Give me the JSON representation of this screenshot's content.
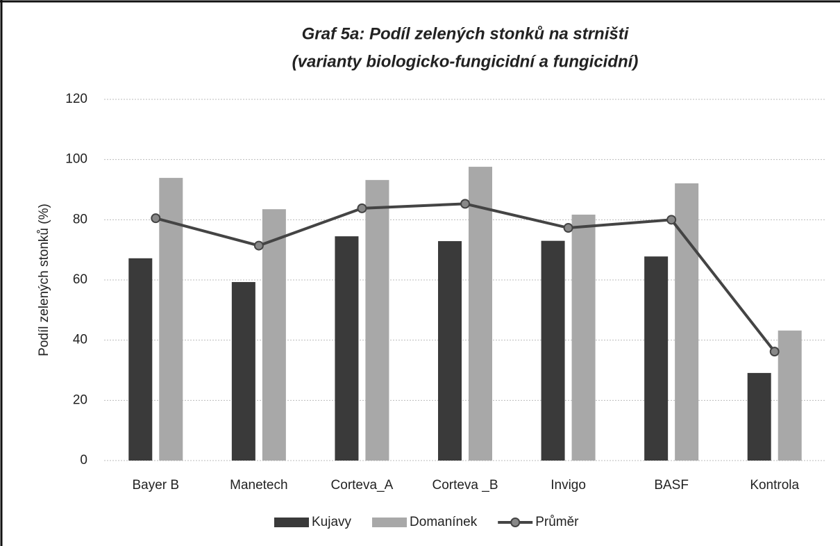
{
  "chart_data": {
    "type": "bar",
    "title": [
      "Graf 5a: Podíl zelených stonků na strništi",
      "(varianty biologicko-fungicidní a fungicidní)"
    ],
    "y_label": "Podíl zelených stonků (%)",
    "categories": [
      "Bayer B",
      "Manetech",
      "Corteva_A",
      "Corteva _B",
      "Invigo",
      "BASF",
      "Kontrola"
    ],
    "series": [
      {
        "name": "Kujavy",
        "type": "bar",
        "color": "#3a3a3a",
        "values": [
          67.2,
          59.3,
          74.5,
          72.9,
          73,
          67.8,
          29.1
        ]
      },
      {
        "name": "Domanínek",
        "type": "bar",
        "color": "#a8a8a8",
        "values": [
          93.9,
          83.5,
          93.2,
          97.6,
          81.7,
          92.1,
          43.2
        ]
      },
      {
        "name": "Průměr",
        "type": "line",
        "color": "#444444",
        "values": [
          80.5,
          71.4,
          83.8,
          85.3,
          77.3,
          80,
          36.2
        ]
      }
    ],
    "ylim": [
      0,
      120
    ],
    "yticks": [
      0,
      20,
      40,
      60,
      80,
      100,
      120
    ],
    "grid": true,
    "legend": "bottom"
  }
}
